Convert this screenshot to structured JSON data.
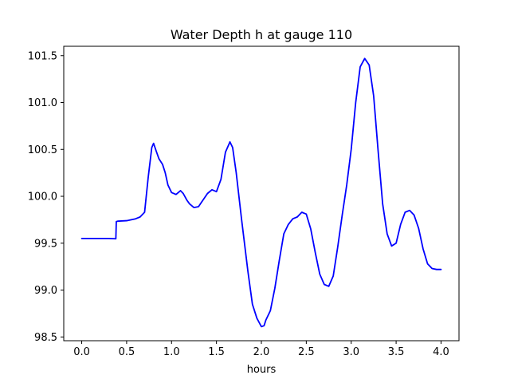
{
  "chart_data": {
    "type": "line",
    "title": "Water Depth h at gauge 110",
    "xlabel": "hours",
    "ylabel": "",
    "xlim": [
      -0.2,
      4.2
    ],
    "ylim": [
      98.46,
      101.6
    ],
    "xticks": [
      0.0,
      0.5,
      1.0,
      1.5,
      2.0,
      2.5,
      3.0,
      3.5,
      4.0
    ],
    "xtick_labels": [
      "0.0",
      "0.5",
      "1.0",
      "1.5",
      "2.0",
      "2.5",
      "3.0",
      "3.5",
      "4.0"
    ],
    "yticks": [
      98.5,
      99.0,
      99.5,
      100.0,
      100.5,
      101.0,
      101.5
    ],
    "ytick_labels": [
      "98.5",
      "99.0",
      "99.5",
      "100.0",
      "100.5",
      "101.0",
      "101.5"
    ],
    "grid": false,
    "legend": "none",
    "series": [
      {
        "color": "#0000ff",
        "x": [
          0.0,
          0.1,
          0.2,
          0.3,
          0.38,
          0.385,
          0.4,
          0.5,
          0.6,
          0.65,
          0.7,
          0.74,
          0.78,
          0.8,
          0.83,
          0.86,
          0.9,
          0.93,
          0.96,
          1.0,
          1.05,
          1.1,
          1.13,
          1.17,
          1.2,
          1.25,
          1.3,
          1.35,
          1.4,
          1.45,
          1.5,
          1.55,
          1.6,
          1.65,
          1.68,
          1.72,
          1.78,
          1.85,
          1.9,
          1.95,
          2.0,
          2.03,
          2.05,
          2.1,
          2.15,
          2.2,
          2.25,
          2.3,
          2.35,
          2.4,
          2.45,
          2.5,
          2.55,
          2.6,
          2.65,
          2.7,
          2.75,
          2.8,
          2.85,
          2.9,
          2.95,
          3.0,
          3.05,
          3.1,
          3.15,
          3.2,
          3.25,
          3.3,
          3.35,
          3.4,
          3.45,
          3.5,
          3.55,
          3.6,
          3.65,
          3.7,
          3.75,
          3.8,
          3.85,
          3.9,
          3.95,
          4.0
        ],
        "y": [
          99.55,
          99.55,
          99.55,
          99.55,
          99.547,
          99.73,
          99.735,
          99.74,
          99.76,
          99.78,
          99.83,
          100.2,
          100.52,
          100.565,
          100.48,
          100.4,
          100.34,
          100.25,
          100.12,
          100.04,
          100.02,
          100.06,
          100.03,
          99.96,
          99.92,
          99.88,
          99.89,
          99.96,
          100.03,
          100.07,
          100.05,
          100.18,
          100.47,
          100.58,
          100.52,
          100.25,
          99.75,
          99.2,
          98.85,
          98.7,
          98.61,
          98.62,
          98.68,
          98.78,
          99.02,
          99.32,
          99.6,
          99.7,
          99.76,
          99.78,
          99.83,
          99.81,
          99.65,
          99.4,
          99.17,
          99.06,
          99.04,
          99.15,
          99.46,
          99.8,
          100.12,
          100.5,
          101.0,
          101.38,
          101.47,
          101.4,
          101.07,
          100.48,
          99.92,
          99.6,
          99.47,
          99.5,
          99.7,
          99.83,
          99.85,
          99.8,
          99.66,
          99.44,
          99.28,
          99.23,
          99.22,
          99.22
        ]
      }
    ]
  }
}
